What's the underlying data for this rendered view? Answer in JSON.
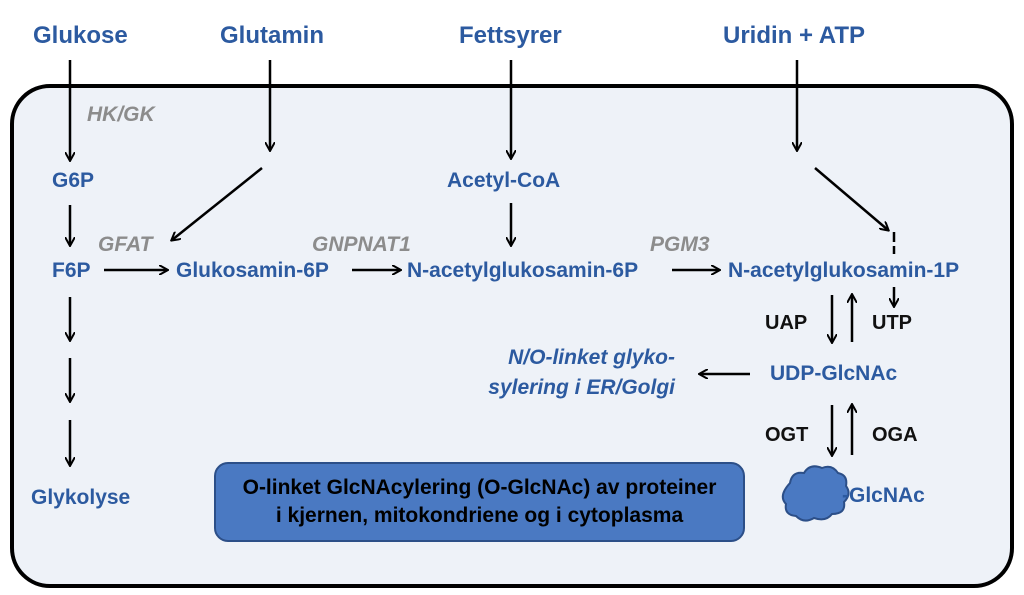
{
  "inputs": {
    "glukose": "Glukose",
    "glutamin": "Glutamin",
    "fettsyrer": "Fettsyrer",
    "uridin_atp": "Uridin + ATP"
  },
  "metabolites": {
    "g6p": "G6P",
    "f6p": "F6P",
    "glykolyse": "Glykolyse",
    "acetyl_coa": "Acetyl-CoA",
    "glukosamin_6p": "Glukosamin-6P",
    "n_acetylglukosamin_6p": "N-acetylglukosamin-6P",
    "n_acetylglukosamin_1p": "N-acetylglukosamin-1P",
    "udp_glcnac": "UDP-GlcNAc",
    "glcnac": "-GlcNAc"
  },
  "enzymes": {
    "hk_gk": "HK/GK",
    "gfat": "GFAT",
    "gnpnat1": "GNPNAT1",
    "pgm3": "PGM3"
  },
  "cofactors": {
    "uap": "UAP",
    "utp": "UTP",
    "ogt": "OGT",
    "oga": "OGA"
  },
  "glycosylation": {
    "line1": "N/O-linket  glyko-",
    "line2": "sylering i ER/Golgi"
  },
  "note": {
    "line1": "O-linket GlcNAcylering (O-GlcNAc) av proteiner",
    "line2": "i kjernen, mitokondriene og i cytoplasma"
  },
  "colors": {
    "metabolite_text": "#2c5aa0",
    "enzyme_text": "#8c8c8c",
    "cell_fill": "#eef2f8",
    "note_fill": "#4a79c2",
    "protein_fill": "#4a79c2"
  }
}
